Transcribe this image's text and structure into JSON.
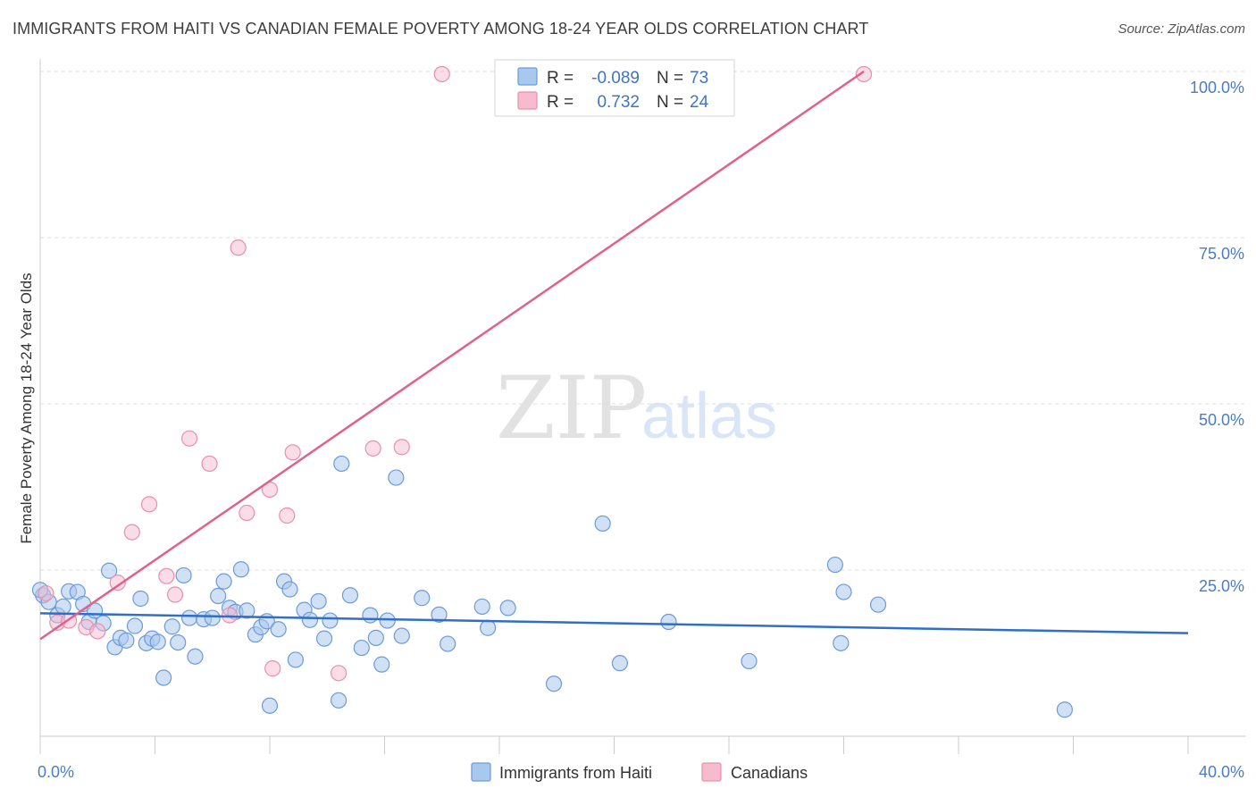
{
  "title": "IMMIGRANTS FROM HAITI VS CANADIAN FEMALE POVERTY AMONG 18-24 YEAR OLDS CORRELATION CHART",
  "source": "Source: ZipAtlas.com",
  "watermark": {
    "zip": "ZIP",
    "atlas": "atlas"
  },
  "colors": {
    "blue_fill": "#a9c8ee",
    "blue_stroke": "#6d9ad6",
    "blue_line": "#2f6fc7",
    "pink_fill": "#f6bccd",
    "pink_stroke": "#ea8fab",
    "pink_line": "#e0628c",
    "tick_label": "#4a7cc7",
    "grid": "#dddddd"
  },
  "legend": {
    "rows": [
      {
        "r_label": "R =",
        "r_value": "-0.089",
        "n_label": "N =",
        "n_value": "73",
        "series": "blue"
      },
      {
        "r_label": "R =",
        "r_value": "0.732",
        "n_label": "N =",
        "n_value": "24",
        "series": "pink"
      }
    ]
  },
  "bottom_legend": [
    {
      "label": "Immigrants from Haiti",
      "series": "blue"
    },
    {
      "label": "Canadians",
      "series": "pink"
    }
  ],
  "chart_data": {
    "type": "scatter",
    "title": "IMMIGRANTS FROM HAITI VS CANADIAN FEMALE POVERTY AMONG 18-24 YEAR OLDS CORRELATION CHART",
    "xlabel": "",
    "ylabel": "Female Poverty Among 18-24 Year Olds",
    "xlim": [
      0,
      40
    ],
    "ylim": [
      0,
      100
    ],
    "x_tick_labels": [
      "0.0%",
      "40.0%"
    ],
    "y_ticks": [
      25,
      50,
      75,
      100
    ],
    "y_tick_labels": [
      "25.0%",
      "50.0%",
      "75.0%",
      "100.0%"
    ],
    "grid": true,
    "legend_position": "top-center",
    "series": [
      {
        "name": "Immigrants from Haiti",
        "color": "#a9c8ee",
        "trend": {
          "x": [
            0,
            40
          ],
          "y": [
            18.5,
            15.5
          ]
        },
        "points": [
          {
            "x": 0.1,
            "y": 21.2
          },
          {
            "x": 0.3,
            "y": 20.2
          },
          {
            "x": 0.6,
            "y": 18.2
          },
          {
            "x": 0.8,
            "y": 19.5
          },
          {
            "x": 1.0,
            "y": 21.8
          },
          {
            "x": 1.3,
            "y": 21.7
          },
          {
            "x": 1.5,
            "y": 19.9
          },
          {
            "x": 1.7,
            "y": 17.2
          },
          {
            "x": 1.9,
            "y": 18.9
          },
          {
            "x": 2.2,
            "y": 17.0
          },
          {
            "x": 2.4,
            "y": 24.9
          },
          {
            "x": 2.6,
            "y": 13.4
          },
          {
            "x": 2.8,
            "y": 14.8
          },
          {
            "x": 3.0,
            "y": 14.4
          },
          {
            "x": 3.3,
            "y": 16.6
          },
          {
            "x": 3.5,
            "y": 20.7
          },
          {
            "x": 3.7,
            "y": 14.0
          },
          {
            "x": 3.9,
            "y": 14.7
          },
          {
            "x": 4.1,
            "y": 14.2
          },
          {
            "x": 4.3,
            "y": 8.8
          },
          {
            "x": 4.6,
            "y": 16.5
          },
          {
            "x": 4.8,
            "y": 14.1
          },
          {
            "x": 5.0,
            "y": 24.2
          },
          {
            "x": 5.2,
            "y": 17.8
          },
          {
            "x": 5.4,
            "y": 12.0
          },
          {
            "x": 5.7,
            "y": 17.6
          },
          {
            "x": 6.0,
            "y": 17.8
          },
          {
            "x": 6.2,
            "y": 21.1
          },
          {
            "x": 6.4,
            "y": 23.3
          },
          {
            "x": 6.6,
            "y": 19.3
          },
          {
            "x": 6.8,
            "y": 18.7
          },
          {
            "x": 7.0,
            "y": 25.1
          },
          {
            "x": 7.2,
            "y": 18.9
          },
          {
            "x": 7.5,
            "y": 15.3
          },
          {
            "x": 7.7,
            "y": 16.4
          },
          {
            "x": 7.9,
            "y": 17.3
          },
          {
            "x": 8.0,
            "y": 4.6
          },
          {
            "x": 8.3,
            "y": 16.1
          },
          {
            "x": 8.5,
            "y": 23.3
          },
          {
            "x": 8.7,
            "y": 22.1
          },
          {
            "x": 8.9,
            "y": 11.5
          },
          {
            "x": 9.2,
            "y": 19.0
          },
          {
            "x": 9.4,
            "y": 17.5
          },
          {
            "x": 9.7,
            "y": 20.3
          },
          {
            "x": 9.9,
            "y": 14.7
          },
          {
            "x": 10.1,
            "y": 17.4
          },
          {
            "x": 10.4,
            "y": 5.4
          },
          {
            "x": 10.5,
            "y": 41.0
          },
          {
            "x": 10.8,
            "y": 21.2
          },
          {
            "x": 11.2,
            "y": 13.3
          },
          {
            "x": 11.5,
            "y": 18.2
          },
          {
            "x": 11.7,
            "y": 14.8
          },
          {
            "x": 11.9,
            "y": 10.8
          },
          {
            "x": 12.1,
            "y": 17.4
          },
          {
            "x": 12.4,
            "y": 38.9
          },
          {
            "x": 12.6,
            "y": 15.1
          },
          {
            "x": 13.3,
            "y": 20.8
          },
          {
            "x": 13.9,
            "y": 18.3
          },
          {
            "x": 14.2,
            "y": 13.9
          },
          {
            "x": 15.4,
            "y": 19.5
          },
          {
            "x": 15.6,
            "y": 16.3
          },
          {
            "x": 16.3,
            "y": 19.3
          },
          {
            "x": 17.9,
            "y": 7.9
          },
          {
            "x": 19.6,
            "y": 32.0
          },
          {
            "x": 20.2,
            "y": 11.0
          },
          {
            "x": 21.9,
            "y": 17.2
          },
          {
            "x": 24.7,
            "y": 11.3
          },
          {
            "x": 27.7,
            "y": 25.8
          },
          {
            "x": 27.9,
            "y": 14.0
          },
          {
            "x": 28.0,
            "y": 21.7
          },
          {
            "x": 29.2,
            "y": 19.8
          },
          {
            "x": 35.7,
            "y": 4.0
          },
          {
            "x": 0.0,
            "y": 22.0
          }
        ]
      },
      {
        "name": "Canadians",
        "color": "#f6bccd",
        "trend": {
          "x": [
            0,
            28.7
          ],
          "y": [
            14.6,
            100.0
          ]
        },
        "points": [
          {
            "x": 0.2,
            "y": 21.5
          },
          {
            "x": 0.6,
            "y": 17.1
          },
          {
            "x": 1.0,
            "y": 17.4
          },
          {
            "x": 1.6,
            "y": 16.4
          },
          {
            "x": 2.0,
            "y": 15.8
          },
          {
            "x": 2.7,
            "y": 23.1
          },
          {
            "x": 3.2,
            "y": 30.7
          },
          {
            "x": 3.8,
            "y": 34.9
          },
          {
            "x": 4.4,
            "y": 24.1
          },
          {
            "x": 4.7,
            "y": 21.3
          },
          {
            "x": 5.2,
            "y": 44.8
          },
          {
            "x": 5.9,
            "y": 41.0
          },
          {
            "x": 6.6,
            "y": 18.2
          },
          {
            "x": 6.9,
            "y": 73.5
          },
          {
            "x": 7.2,
            "y": 33.6
          },
          {
            "x": 8.0,
            "y": 37.1
          },
          {
            "x": 8.1,
            "y": 10.2
          },
          {
            "x": 8.6,
            "y": 33.2
          },
          {
            "x": 8.8,
            "y": 42.7
          },
          {
            "x": 10.4,
            "y": 9.5
          },
          {
            "x": 11.6,
            "y": 43.3
          },
          {
            "x": 12.6,
            "y": 43.5
          },
          {
            "x": 14.0,
            "y": 99.6
          },
          {
            "x": 28.7,
            "y": 99.6
          }
        ]
      }
    ]
  }
}
